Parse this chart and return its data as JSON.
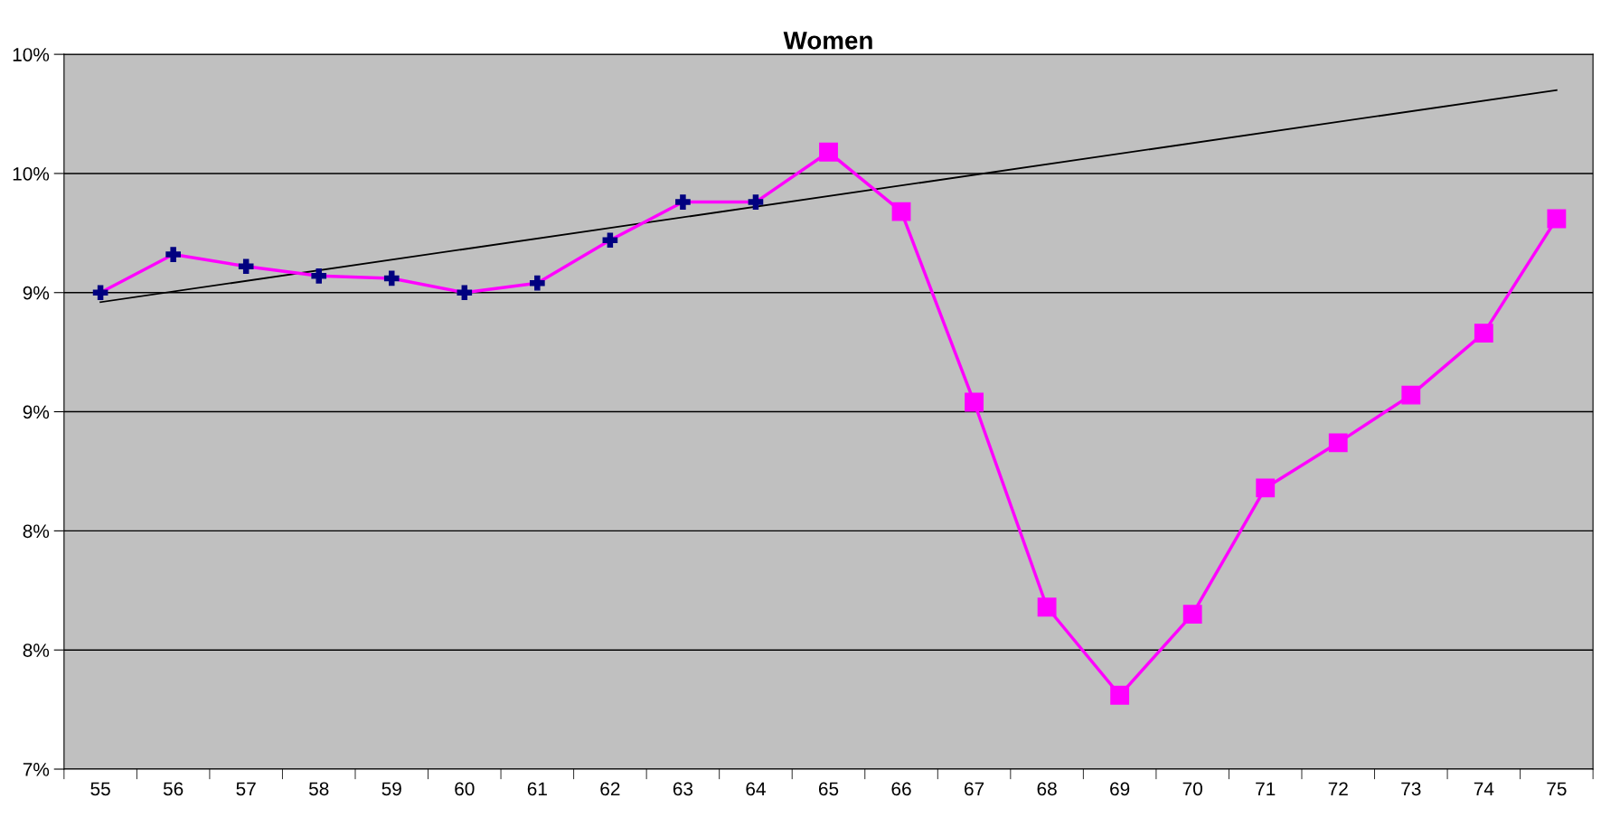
{
  "chart_data": {
    "type": "line",
    "title": "Women",
    "categories": [
      "55",
      "56",
      "57",
      "58",
      "59",
      "60",
      "61",
      "62",
      "63",
      "64",
      "65",
      "66",
      "67",
      "68",
      "69",
      "70",
      "71",
      "72",
      "73",
      "74",
      "75"
    ],
    "series": [
      {
        "color": "#ff00ff",
        "marker": "cross",
        "colors": [
          "#000080",
          "#000080",
          "#000080",
          "#000080",
          "#000080",
          "#000080",
          "#000080",
          "#000080",
          "#000080",
          "#000080",
          "#000080",
          null,
          null,
          null,
          null,
          null,
          null,
          null,
          null,
          null,
          null
        ],
        "values": [
          9.0,
          9.16,
          9.11,
          9.07,
          9.06,
          9.0,
          9.04,
          9.22,
          9.38,
          9.38,
          9.59,
          null,
          null,
          null,
          null,
          null,
          null,
          null,
          null,
          null,
          null
        ]
      },
      {
        "color": "#ff00ff",
        "marker": "square",
        "values": [
          null,
          null,
          null,
          null,
          null,
          null,
          null,
          null,
          null,
          null,
          9.59,
          9.34,
          8.54,
          7.68,
          7.31,
          7.65,
          8.18,
          8.37,
          8.57,
          8.83,
          9.31
        ]
      },
      {
        "type": "line",
        "color": "#000000",
        "marker": "none",
        "x": [
          "55",
          "75"
        ],
        "values": [
          8.96,
          9.85
        ]
      }
    ],
    "ylim": [
      7.0,
      10.0
    ],
    "yticks": [
      {
        "value": 7.0,
        "label": "7%"
      },
      {
        "value": 7.5,
        "label": "8%"
      },
      {
        "value": 8.0,
        "label": "8%"
      },
      {
        "value": 8.5,
        "label": "9%"
      },
      {
        "value": 9.0,
        "label": "9%"
      },
      {
        "value": 9.5,
        "label": "10%"
      },
      {
        "value": 10.0,
        "label": "10%"
      }
    ],
    "grid": "y",
    "legend": false
  }
}
